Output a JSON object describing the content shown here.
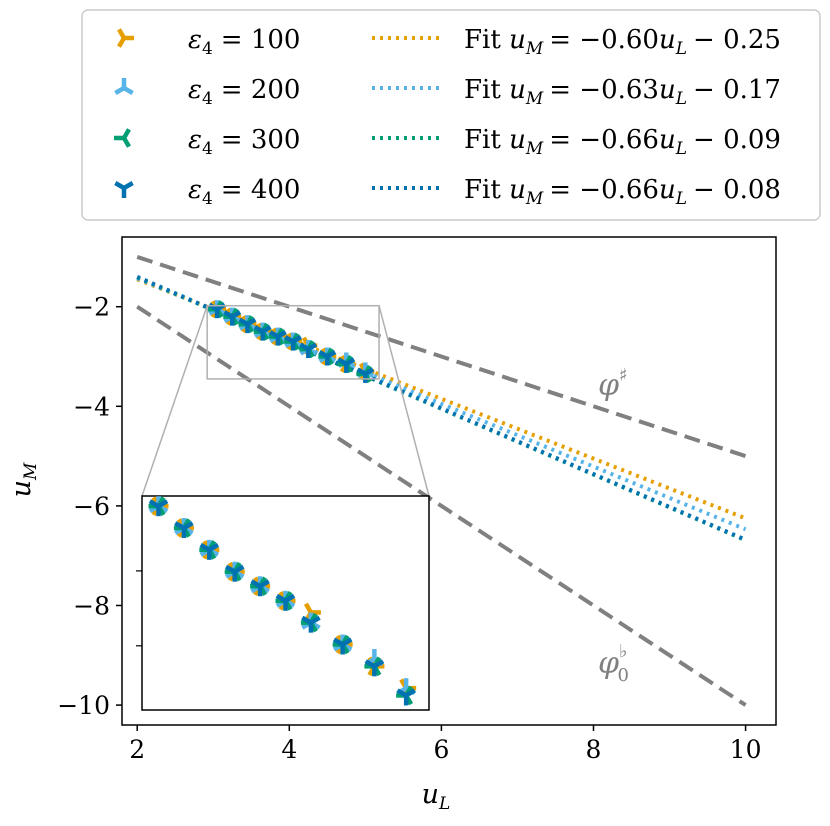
{
  "chart_data": {
    "type": "scatter",
    "xlabel": "u",
    "xlabel_sub": "L",
    "ylabel": "u",
    "ylabel_sub": "M",
    "xlim": [
      1.8,
      10.4
    ],
    "ylim": [
      -10.4,
      -0.6
    ],
    "xticks": [
      2,
      4,
      6,
      8,
      10
    ],
    "yticks": [
      -2,
      -4,
      -6,
      -8,
      -10
    ],
    "xtick_labels": [
      "2",
      "4",
      "6",
      "8",
      "10"
    ],
    "ytick_labels": [
      "−2",
      "−4",
      "−6",
      "−8",
      "−10"
    ],
    "legend_position": "top",
    "series": [
      {
        "name": "ε4 = 100",
        "eps_symbol": "ε",
        "eps_sub": "4",
        "eps_value": "= 100",
        "color": "#E69F00",
        "marker": "tri_right",
        "x": [
          3.05,
          3.25,
          3.45,
          3.65,
          3.85,
          4.05,
          4.25,
          4.5,
          4.75,
          5.0
        ],
        "y": [
          -2.05,
          -2.2,
          -2.35,
          -2.5,
          -2.6,
          -2.7,
          -2.78,
          -3.0,
          -3.15,
          -3.3
        ],
        "fit_slope": -0.6,
        "fit_intercept": -0.25,
        "fit_label": "Fit u_M = −0.60u_L − 0.25",
        "fit_prefix": "Fit ",
        "fit_eq": "= −0.60",
        "fit_const": "− 0.25"
      },
      {
        "name": "ε4 = 200",
        "eps_symbol": "ε",
        "eps_sub": "4",
        "eps_value": "= 200",
        "color": "#56B4E9",
        "marker": "tri_up",
        "x": [
          3.05,
          3.25,
          3.45,
          3.65,
          3.85,
          4.05,
          4.25,
          4.5,
          4.75,
          5.0
        ],
        "y": [
          -2.05,
          -2.2,
          -2.35,
          -2.5,
          -2.6,
          -2.7,
          -2.85,
          -3.0,
          -3.1,
          -3.3
        ],
        "fit_slope": -0.63,
        "fit_intercept": -0.17,
        "fit_label": "Fit u_M = −0.63u_L − 0.17",
        "fit_prefix": "Fit ",
        "fit_eq": "= −0.63",
        "fit_const": "− 0.17"
      },
      {
        "name": "ε4 = 300",
        "eps_symbol": "ε",
        "eps_sub": "4",
        "eps_value": "= 300",
        "color": "#009E73",
        "marker": "tri_left",
        "x": [
          3.05,
          3.25,
          3.45,
          3.65,
          3.85,
          4.05,
          4.25,
          4.5,
          4.75,
          5.0
        ],
        "y": [
          -2.05,
          -2.2,
          -2.35,
          -2.5,
          -2.6,
          -2.7,
          -2.85,
          -3.0,
          -3.15,
          -3.35
        ],
        "fit_slope": -0.66,
        "fit_intercept": -0.09,
        "fit_label": "Fit u_M = −0.66u_L − 0.09",
        "fit_prefix": "Fit ",
        "fit_eq": "= −0.66",
        "fit_const": "− 0.09"
      },
      {
        "name": "ε4 = 400",
        "eps_symbol": "ε",
        "eps_sub": "4",
        "eps_value": "= 400",
        "color": "#0072B2",
        "marker": "tri_down",
        "x": [
          3.05,
          3.25,
          3.45,
          3.65,
          3.85,
          4.05,
          4.25,
          4.5,
          4.75,
          5.0
        ],
        "y": [
          -2.05,
          -2.2,
          -2.35,
          -2.5,
          -2.6,
          -2.7,
          -2.85,
          -3.0,
          -3.15,
          -3.35
        ],
        "fit_slope": -0.66,
        "fit_intercept": -0.08,
        "fit_label": "Fit u_M = −0.66u_L − 0.08",
        "fit_prefix": "Fit ",
        "fit_eq": "= −0.66",
        "fit_const": "− 0.08"
      }
    ],
    "reference_lines": [
      {
        "name": "φ♯",
        "label_base": "φ",
        "label_sup": "♯",
        "label_sub": "",
        "color": "#808080",
        "slope": -0.5,
        "intercept": 0,
        "x_range": [
          2,
          10
        ],
        "label_x": 8.0,
        "label_y": -3.5
      },
      {
        "name": "φ♭0",
        "label_base": "φ",
        "label_sup": "♭",
        "label_sub": "0",
        "color": "#808080",
        "slope": -1.0,
        "intercept": 0,
        "x_range": [
          2,
          10
        ],
        "label_x": 8.0,
        "label_y": -9.1
      }
    ],
    "inset": {
      "xlim": [
        2.92,
        5.18
      ],
      "ylim": [
        -3.45,
        -1.98
      ],
      "note": "zoomed view of marker region"
    }
  }
}
